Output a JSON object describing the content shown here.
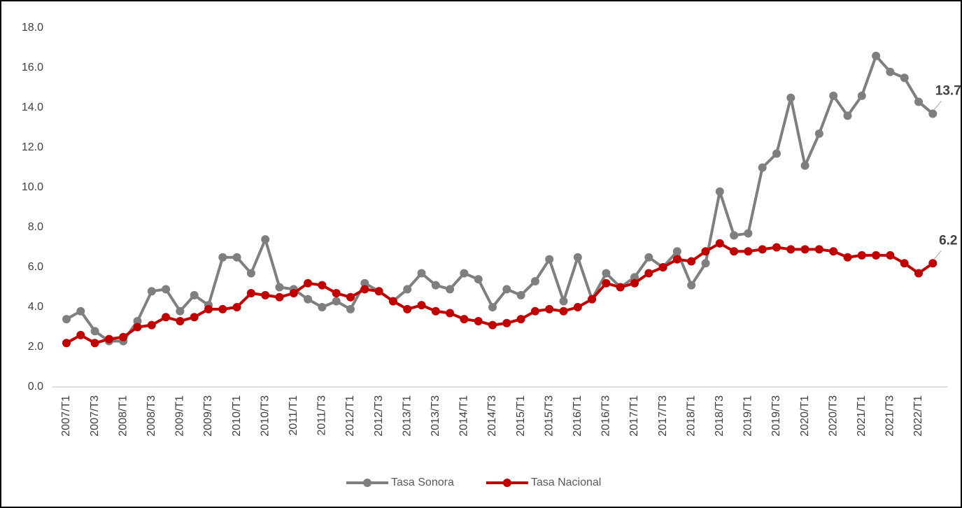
{
  "chart_data": {
    "type": "line",
    "categories": [
      "2007/T1",
      null,
      "2007/T3",
      null,
      "2008/T1",
      null,
      "2008/T3",
      null,
      "2009/T1",
      null,
      "2009/T3",
      null,
      "2010/T1",
      null,
      "2010/T3",
      null,
      "2011/T1",
      null,
      "2011/T3",
      null,
      "2012/T1",
      null,
      "2012/T3",
      null,
      "2013/T1",
      null,
      "2013/T3",
      null,
      "2014/T1",
      null,
      "2014/T3",
      null,
      "2015/T1",
      null,
      "2015/T3",
      null,
      "2016/T1",
      null,
      "2016/T3",
      null,
      "2017/T1",
      null,
      "2017/T3",
      null,
      "2018/T1",
      null,
      "2018/T3",
      null,
      "2019/T1",
      null,
      "2019/T3",
      null,
      "2020/T1",
      null,
      "2020/T3",
      null,
      "2021/T1",
      null,
      "2021/T3",
      null,
      "2022/T1",
      null
    ],
    "series": [
      {
        "name": "Tasa Sonora",
        "color": "#7f7f7f",
        "values": [
          3.4,
          3.8,
          2.8,
          2.3,
          2.3,
          3.3,
          4.8,
          4.9,
          3.8,
          4.6,
          4.1,
          6.5,
          6.5,
          5.7,
          7.4,
          5.0,
          4.9,
          4.4,
          4.0,
          4.3,
          3.9,
          5.2,
          4.8,
          4.3,
          4.9,
          5.7,
          5.1,
          4.9,
          5.7,
          5.4,
          4.0,
          4.9,
          4.6,
          5.3,
          6.4,
          4.3,
          6.5,
          4.4,
          5.7,
          5.0,
          5.5,
          6.5,
          6.0,
          6.8,
          5.1,
          6.2,
          9.8,
          7.6,
          7.7,
          11.0,
          11.7,
          14.5,
          11.1,
          12.7,
          14.6,
          13.6,
          14.6,
          16.6,
          15.8,
          15.5,
          14.3,
          13.7
        ]
      },
      {
        "name": "Tasa Nacional",
        "color": "#c00000",
        "values": [
          2.2,
          2.6,
          2.2,
          2.4,
          2.5,
          3.0,
          3.1,
          3.5,
          3.3,
          3.5,
          3.9,
          3.9,
          4.0,
          4.7,
          4.6,
          4.5,
          4.7,
          5.2,
          5.1,
          4.7,
          4.5,
          4.9,
          4.8,
          4.3,
          3.9,
          4.1,
          3.8,
          3.7,
          3.4,
          3.3,
          3.1,
          3.2,
          3.4,
          3.8,
          3.9,
          3.8,
          4.0,
          4.4,
          5.2,
          5.0,
          5.2,
          5.7,
          6.0,
          6.4,
          6.3,
          6.8,
          7.2,
          6.8,
          6.8,
          6.9,
          7.0,
          6.9,
          6.9,
          6.9,
          6.8,
          6.5,
          6.6,
          6.6,
          6.6,
          6.2,
          5.7,
          6.2
        ]
      }
    ],
    "ylim": [
      0,
      18
    ],
    "yticks": [
      {
        "value": 0,
        "label": "0.0"
      },
      {
        "value": 2,
        "label": "2.0"
      },
      {
        "value": 4,
        "label": "4.0"
      },
      {
        "value": 6,
        "label": "6.0"
      },
      {
        "value": 8,
        "label": "8.0"
      },
      {
        "value": 10,
        "label": "10.0"
      },
      {
        "value": 12,
        "label": "12.0"
      },
      {
        "value": 14,
        "label": "14.0"
      },
      {
        "value": 16,
        "label": "16.0"
      },
      {
        "value": 18,
        "label": "18.0"
      }
    ],
    "grid": false,
    "legend": "bottom"
  }
}
